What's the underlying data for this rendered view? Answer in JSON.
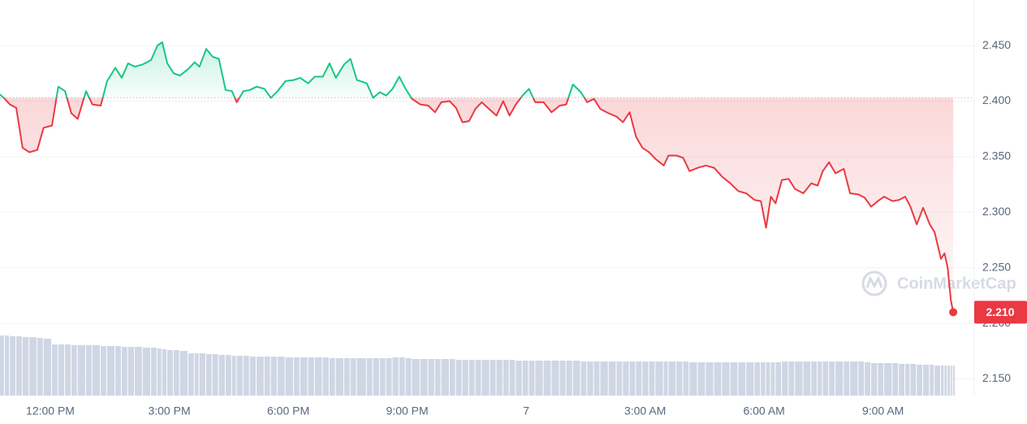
{
  "chart_data": {
    "type": "line",
    "watermark": "CoinMarketCap",
    "up_color": "#16c784",
    "down_color": "#ea3943",
    "volume_color": "#cfd6e4",
    "reference_price": 2.403,
    "current_price": {
      "value": 2.21,
      "label": "2.210"
    },
    "xlim": [
      10.73,
      35.3
    ],
    "ylim": [
      2.135,
      2.491
    ],
    "grid": true,
    "xticks": [
      {
        "value": 12,
        "label": "12:00 PM"
      },
      {
        "value": 15,
        "label": "3:00 PM"
      },
      {
        "value": 18,
        "label": "6:00 PM"
      },
      {
        "value": 21,
        "label": "9:00 PM"
      },
      {
        "value": 24,
        "label": "7"
      },
      {
        "value": 27,
        "label": "3:00 AM"
      },
      {
        "value": 30,
        "label": "6:00 AM"
      },
      {
        "value": 33,
        "label": "9:00 AM"
      }
    ],
    "yticks": [
      {
        "value": 2.45,
        "label": "2.450"
      },
      {
        "value": 2.4,
        "label": "2.400"
      },
      {
        "value": 2.35,
        "label": "2.350"
      },
      {
        "value": 2.3,
        "label": "2.300"
      },
      {
        "value": 2.25,
        "label": "2.250"
      },
      {
        "value": 2.2,
        "label": "2.200"
      },
      {
        "value": 2.15,
        "label": "2.150"
      }
    ],
    "x": [
      10.73,
      10.85,
      10.98,
      11.14,
      11.3,
      11.47,
      11.67,
      11.83,
      12.04,
      12.2,
      12.37,
      12.53,
      12.69,
      12.9,
      13.06,
      13.27,
      13.43,
      13.64,
      13.8,
      13.96,
      14.13,
      14.33,
      14.54,
      14.7,
      14.82,
      14.95,
      15.11,
      15.27,
      15.48,
      15.64,
      15.76,
      15.93,
      16.09,
      16.25,
      16.42,
      16.58,
      16.7,
      16.87,
      17.03,
      17.2,
      17.4,
      17.56,
      17.73,
      17.93,
      18.14,
      18.3,
      18.5,
      18.67,
      18.87,
      19.04,
      19.2,
      19.41,
      19.57,
      19.73,
      19.98,
      20.14,
      20.31,
      20.47,
      20.63,
      20.8,
      20.96,
      21.12,
      21.33,
      21.53,
      21.7,
      21.86,
      22.07,
      22.23,
      22.39,
      22.56,
      22.72,
      22.88,
      23.09,
      23.25,
      23.42,
      23.58,
      23.74,
      23.91,
      24.07,
      24.23,
      24.44,
      24.64,
      24.85,
      25.01,
      25.18,
      25.38,
      25.54,
      25.71,
      25.87,
      26.08,
      26.28,
      26.44,
      26.61,
      26.77,
      26.93,
      27.1,
      27.26,
      27.47,
      27.59,
      27.79,
      27.96,
      28.12,
      28.33,
      28.53,
      28.74,
      28.94,
      29.15,
      29.35,
      29.55,
      29.76,
      29.92,
      30.05,
      30.17,
      30.29,
      30.45,
      30.62,
      30.78,
      30.99,
      31.19,
      31.35,
      31.48,
      31.64,
      31.8,
      32.01,
      32.17,
      32.38,
      32.54,
      32.7,
      32.87,
      33.03,
      33.24,
      33.4,
      33.56,
      33.69,
      33.85,
      34.01,
      34.18,
      34.3,
      34.46,
      34.55,
      34.63,
      34.71,
      34.77
    ],
    "values": [
      2.406,
      2.402,
      2.397,
      2.394,
      2.358,
      2.354,
      2.356,
      2.376,
      2.378,
      2.413,
      2.409,
      2.389,
      2.384,
      2.409,
      2.397,
      2.396,
      2.418,
      2.43,
      2.421,
      2.434,
      2.431,
      2.433,
      2.437,
      2.45,
      2.453,
      2.434,
      2.425,
      2.423,
      2.429,
      2.435,
      2.431,
      2.447,
      2.44,
      2.438,
      2.41,
      2.409,
      2.399,
      2.409,
      2.41,
      2.413,
      2.411,
      2.403,
      2.409,
      2.418,
      2.419,
      2.421,
      2.416,
      2.422,
      2.422,
      2.434,
      2.421,
      2.433,
      2.438,
      2.419,
      2.416,
      2.403,
      2.408,
      2.405,
      2.411,
      2.422,
      2.411,
      2.402,
      2.397,
      2.396,
      2.39,
      2.399,
      2.4,
      2.394,
      2.381,
      2.382,
      2.393,
      2.399,
      2.392,
      2.387,
      2.4,
      2.387,
      2.397,
      2.405,
      2.411,
      2.399,
      2.399,
      2.39,
      2.396,
      2.397,
      2.415,
      2.408,
      2.399,
      2.402,
      2.393,
      2.389,
      2.386,
      2.381,
      2.39,
      2.368,
      2.358,
      2.354,
      2.348,
      2.342,
      2.351,
      2.351,
      2.349,
      2.337,
      2.34,
      2.342,
      2.34,
      2.332,
      2.326,
      2.319,
      2.317,
      2.311,
      2.31,
      2.286,
      2.314,
      2.308,
      2.329,
      2.33,
      2.321,
      2.317,
      2.326,
      2.324,
      2.337,
      2.345,
      2.335,
      2.339,
      2.317,
      2.316,
      2.313,
      2.305,
      2.31,
      2.314,
      2.31,
      2.311,
      2.314,
      2.305,
      2.289,
      2.304,
      2.289,
      2.282,
      2.258,
      2.263,
      2.25,
      2.221,
      2.21
    ],
    "volume": [
      74,
      74,
      73,
      73,
      72,
      72,
      71,
      70,
      63,
      63,
      63,
      62,
      62,
      62,
      62,
      61,
      61,
      61,
      60,
      60,
      60,
      59,
      59,
      58,
      57,
      56,
      56,
      55,
      52,
      52,
      52,
      51,
      51,
      50,
      50,
      49,
      49,
      49,
      48,
      48,
      48,
      48,
      48,
      47,
      47,
      47,
      47,
      47,
      47,
      46,
      46,
      46,
      46,
      46,
      46,
      46,
      46,
      46,
      47,
      47,
      46,
      45,
      45,
      45,
      45,
      45,
      45,
      44,
      44,
      44,
      44,
      44,
      44,
      44,
      44,
      44,
      43,
      43,
      43,
      43,
      43,
      43,
      43,
      43,
      43,
      42,
      42,
      42,
      42,
      42,
      42,
      42,
      42,
      42,
      42,
      42,
      42,
      42,
      42,
      42,
      42,
      41,
      41,
      41,
      41,
      41,
      41,
      41,
      41,
      41,
      41,
      41,
      41,
      41,
      42,
      42,
      42,
      42,
      42,
      42,
      42,
      42,
      42,
      42,
      42,
      42,
      41,
      40,
      40,
      40,
      40,
      39,
      39,
      39,
      38,
      38,
      38,
      37,
      37,
      37,
      37,
      37,
      37
    ]
  }
}
